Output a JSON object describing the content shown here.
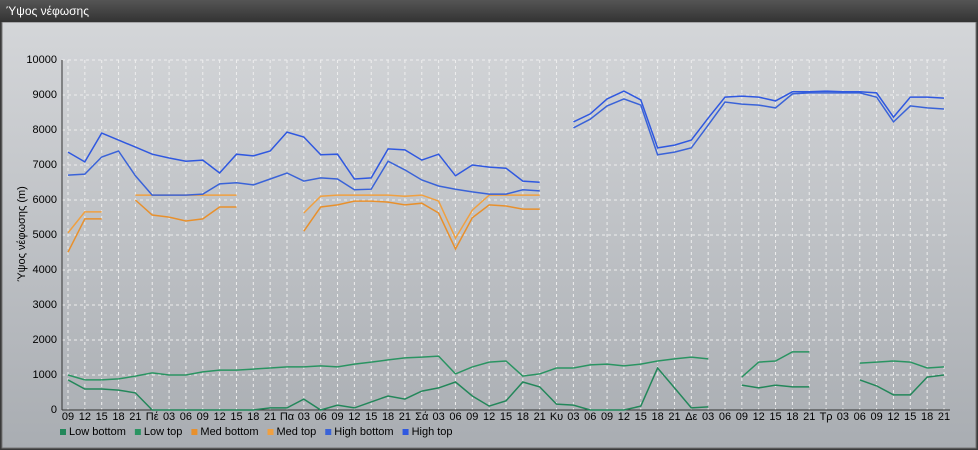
{
  "window_title": "Ύψος νέφωσης",
  "chart_data": {
    "type": "line",
    "y_label": "Ύψος νέφωσης (m)",
    "categories": [
      "09",
      "12",
      "15",
      "18",
      "21",
      "Πέ",
      "03",
      "06",
      "09",
      "12",
      "15",
      "18",
      "21",
      "Πα",
      "03",
      "06",
      "09",
      "12",
      "15",
      "18",
      "21",
      "Σά",
      "03",
      "06",
      "09",
      "12",
      "15",
      "18",
      "21",
      "Κυ",
      "03",
      "06",
      "09",
      "12",
      "15",
      "18",
      "21",
      "Δε",
      "03",
      "06",
      "09",
      "12",
      "15",
      "18",
      "21",
      "Τρ",
      "03",
      "06",
      "09",
      "12",
      "15",
      "18",
      "21"
    ],
    "ylim": [
      0,
      10000
    ],
    "yticks": [
      0,
      1000,
      2000,
      3000,
      4000,
      5000,
      6000,
      7000,
      8000,
      9000,
      10000
    ],
    "grid": true,
    "legend": "bottom",
    "series": [
      {
        "name": "Low bottom",
        "color": "#23875a",
        "values": [
          860,
          600,
          600,
          570,
          490,
          0,
          0,
          0,
          0,
          0,
          0,
          0,
          60,
          60,
          310,
          0,
          140,
          60,
          230,
          400,
          310,
          540,
          630,
          800,
          400,
          110,
          260,
          800,
          660,
          170,
          140,
          0,
          0,
          0,
          110,
          1200,
          630,
          60,
          90,
          null,
          710,
          630,
          710,
          660,
          660,
          null,
          null,
          860,
          690,
          430,
          430,
          940,
          1000
        ]
      },
      {
        "name": "Low top",
        "color": "#2a9462",
        "values": [
          1000,
          860,
          860,
          890,
          970,
          1060,
          1000,
          1000,
          1090,
          1140,
          1140,
          1170,
          1200,
          1230,
          1230,
          1260,
          1230,
          1310,
          1370,
          1430,
          1490,
          1510,
          1540,
          1030,
          1230,
          1370,
          1400,
          970,
          1030,
          1200,
          1200,
          1290,
          1310,
          1260,
          1310,
          1400,
          1460,
          1510,
          1460,
          null,
          940,
          1370,
          1400,
          1660,
          1660,
          null,
          null,
          1340,
          1370,
          1400,
          1370,
          1200,
          1230
        ]
      },
      {
        "name": "Med bottom",
        "color": "#e8902c",
        "values": [
          4510,
          5460,
          5460,
          null,
          6000,
          5570,
          5510,
          5400,
          5460,
          5800,
          5800,
          null,
          null,
          null,
          5110,
          5800,
          5860,
          5970,
          5970,
          5940,
          5860,
          5910,
          5630,
          4600,
          5490,
          5860,
          5830,
          5740,
          5740,
          null,
          null,
          null,
          null,
          null,
          null,
          null,
          null,
          null,
          null,
          null,
          null,
          null,
          null,
          null,
          null,
          null,
          null,
          null,
          null,
          null,
          null,
          null,
          null
        ]
      },
      {
        "name": "Med top",
        "color": "#f0a040",
        "values": [
          5060,
          5660,
          5660,
          null,
          6140,
          6140,
          6140,
          6140,
          6140,
          6140,
          6140,
          null,
          null,
          null,
          5630,
          6110,
          6140,
          6140,
          6140,
          6140,
          6110,
          6140,
          5970,
          4910,
          5710,
          6140,
          6140,
          6140,
          6140,
          null,
          null,
          null,
          null,
          null,
          null,
          null,
          null,
          null,
          null,
          null,
          null,
          null,
          null,
          null,
          null,
          null,
          null,
          null,
          null,
          null,
          null,
          null,
          null
        ]
      },
      {
        "name": "High bottom",
        "color": "#3a63d8",
        "values": [
          6710,
          6740,
          7230,
          7400,
          6690,
          6140,
          6140,
          6140,
          6170,
          6460,
          6490,
          6430,
          6600,
          6770,
          6540,
          6630,
          6600,
          6290,
          6310,
          7110,
          6860,
          6570,
          6400,
          6310,
          6230,
          6170,
          6170,
          6290,
          6260,
          null,
          8060,
          8310,
          8690,
          8890,
          8710,
          7290,
          7370,
          7490,
          8140,
          8800,
          8740,
          8710,
          8630,
          9030,
          9060,
          9060,
          9060,
          9060,
          8940,
          8230,
          8690,
          8630,
          8600
        ]
      },
      {
        "name": "High top",
        "color": "#2f58e0",
        "values": [
          7370,
          7090,
          7910,
          7710,
          7510,
          7310,
          7200,
          7110,
          7140,
          6770,
          7310,
          7260,
          7400,
          7940,
          7800,
          7290,
          7310,
          6600,
          6630,
          7460,
          7430,
          7140,
          7310,
          6690,
          7000,
          6940,
          6910,
          6540,
          6510,
          null,
          8230,
          8460,
          8890,
          9110,
          8860,
          7490,
          7570,
          7710,
          8340,
          8940,
          8970,
          8940,
          8830,
          9090,
          9090,
          9110,
          9090,
          9090,
          9060,
          8370,
          8940,
          8940,
          8910
        ]
      }
    ]
  }
}
